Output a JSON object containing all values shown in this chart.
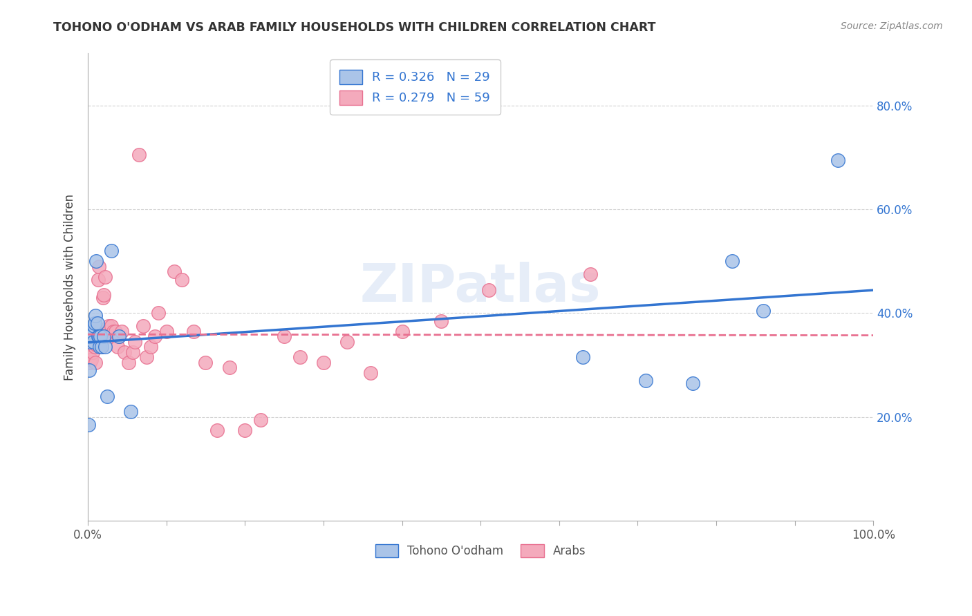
{
  "title": "TOHONO O'ODHAM VS ARAB FAMILY HOUSEHOLDS WITH CHILDREN CORRELATION CHART",
  "source": "Source: ZipAtlas.com",
  "ylabel": "Family Households with Children",
  "background_color": "#ffffff",
  "grid_color": "#cccccc",
  "watermark": "ZIPatlas",
  "tohono_color": "#aac4e8",
  "arab_color": "#f4aabc",
  "tohono_line_color": "#3375d1",
  "arab_line_color": "#e87090",
  "tohono_label": "Tohono O'odham",
  "arab_label": "Arabs",
  "xmin": 0.0,
  "xmax": 1.0,
  "ymin": 0.0,
  "ymax": 0.9,
  "ytick_positions": [
    0.2,
    0.4,
    0.6,
    0.8
  ],
  "ytick_labels": [
    "20.0%",
    "40.0%",
    "60.0%",
    "80.0%"
  ],
  "xtick_left_label": "0.0%",
  "xtick_right_label": "100.0%",
  "legend_label_1": "R = 0.326   N = 29",
  "legend_label_2": "R = 0.279   N = 59",
  "tohono_x": [
    0.001,
    0.002,
    0.003,
    0.004,
    0.005,
    0.006,
    0.007,
    0.008,
    0.009,
    0.01,
    0.011,
    0.012,
    0.013,
    0.014,
    0.015,
    0.016,
    0.018,
    0.02,
    0.022,
    0.025,
    0.03,
    0.04,
    0.055,
    0.63,
    0.71,
    0.77,
    0.82,
    0.86,
    0.955
  ],
  "tohono_y": [
    0.185,
    0.29,
    0.345,
    0.355,
    0.365,
    0.36,
    0.345,
    0.375,
    0.38,
    0.395,
    0.5,
    0.38,
    0.355,
    0.355,
    0.335,
    0.355,
    0.335,
    0.355,
    0.335,
    0.24,
    0.52,
    0.355,
    0.21,
    0.315,
    0.27,
    0.265,
    0.5,
    0.405,
    0.695
  ],
  "arab_x": [
    0.001,
    0.002,
    0.003,
    0.004,
    0.005,
    0.006,
    0.007,
    0.008,
    0.009,
    0.01,
    0.01,
    0.011,
    0.012,
    0.013,
    0.014,
    0.015,
    0.016,
    0.017,
    0.018,
    0.019,
    0.02,
    0.022,
    0.024,
    0.026,
    0.028,
    0.03,
    0.033,
    0.035,
    0.038,
    0.04,
    0.043,
    0.047,
    0.052,
    0.057,
    0.06,
    0.065,
    0.07,
    0.075,
    0.08,
    0.085,
    0.09,
    0.1,
    0.11,
    0.12,
    0.135,
    0.15,
    0.165,
    0.18,
    0.2,
    0.22,
    0.25,
    0.27,
    0.3,
    0.33,
    0.36,
    0.4,
    0.45,
    0.51,
    0.64
  ],
  "arab_y": [
    0.335,
    0.34,
    0.305,
    0.31,
    0.35,
    0.325,
    0.37,
    0.36,
    0.335,
    0.305,
    0.345,
    0.34,
    0.355,
    0.465,
    0.49,
    0.365,
    0.34,
    0.335,
    0.335,
    0.43,
    0.435,
    0.47,
    0.365,
    0.375,
    0.355,
    0.375,
    0.365,
    0.365,
    0.335,
    0.355,
    0.365,
    0.325,
    0.305,
    0.325,
    0.345,
    0.705,
    0.375,
    0.315,
    0.335,
    0.355,
    0.4,
    0.365,
    0.48,
    0.465,
    0.365,
    0.305,
    0.175,
    0.295,
    0.175,
    0.195,
    0.355,
    0.315,
    0.305,
    0.345,
    0.285,
    0.365,
    0.385,
    0.445,
    0.475
  ]
}
